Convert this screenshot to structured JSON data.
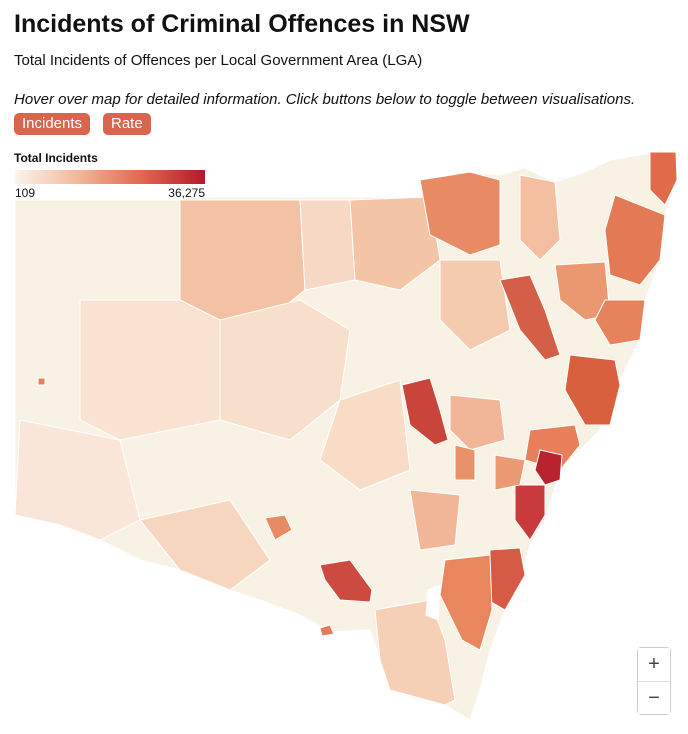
{
  "header": {
    "title": "Incidents of Criminal Offences in NSW",
    "subtitle": "Total Incidents of Offences per Local Government Area (LGA)",
    "instruction": "Hover over map for detailed information. Click buttons below to toggle between visualisations."
  },
  "buttons": [
    "Incidents",
    "Rate"
  ],
  "legend": {
    "title": "Total Incidents",
    "min": "109",
    "max": "36,275"
  },
  "zoom": [
    "+",
    "−"
  ]
}
